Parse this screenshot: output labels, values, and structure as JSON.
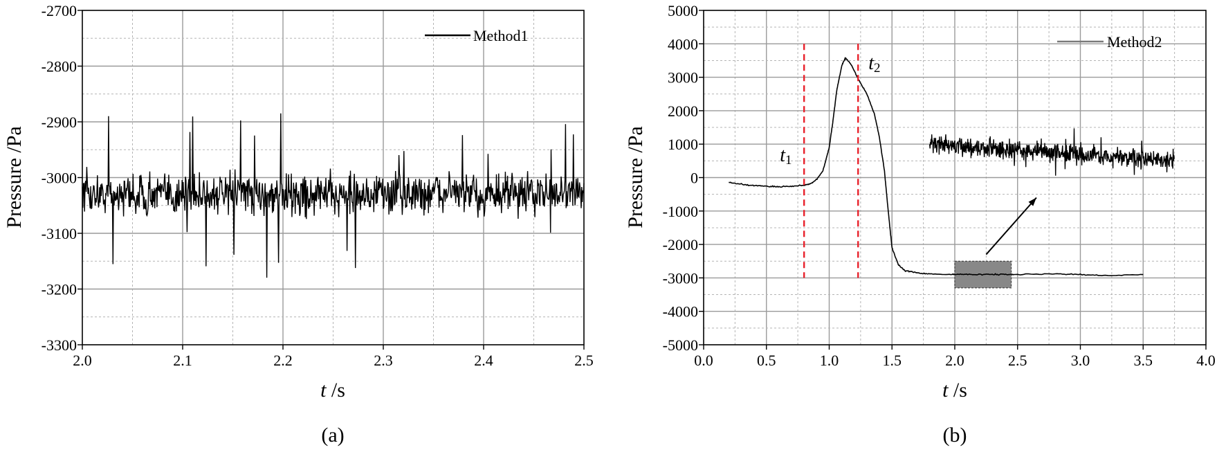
{
  "chart_data": [
    {
      "type": "line",
      "panel_label": "(a)",
      "xlabel_italic": "t",
      "xlabel_unit": " /s",
      "ylabel": "Pressure /Pa",
      "xlim": [
        2.0,
        2.5
      ],
      "ylim": [
        -3300,
        -2700
      ],
      "xticks": [
        "2.0",
        "2.1",
        "2.2",
        "2.3",
        "2.4",
        "2.5"
      ],
      "yticks": [
        "-2700",
        "-2800",
        "-2900",
        "-3000",
        "-3100",
        "-3200",
        "-3300"
      ],
      "grid": true,
      "legend_position": "top-right",
      "series": [
        {
          "name": "Method1",
          "color": "#000000",
          "description_values": {
            "mean": -3030,
            "noise_amplitude": 45,
            "min": -3200,
            "max": -2880,
            "x_start": 2.0,
            "x_end": 2.5
          }
        }
      ]
    },
    {
      "type": "line",
      "panel_label": "(b)",
      "xlabel_italic": "t",
      "xlabel_unit": " /s",
      "ylabel": "Pressure /Pa",
      "xlim": [
        0.0,
        4.0
      ],
      "ylim": [
        -5000,
        5000
      ],
      "xticks": [
        "0.0",
        "0.5",
        "1.0",
        "1.5",
        "2.0",
        "2.5",
        "3.0",
        "3.5",
        "4.0"
      ],
      "yticks": [
        "5000",
        "4000",
        "3000",
        "2000",
        "1000",
        "0",
        "-1000",
        "-2000",
        "-3000",
        "-4000",
        "-5000"
      ],
      "grid": true,
      "legend_position": "top-right",
      "series": [
        {
          "name": "Method2",
          "color": "#000000",
          "x": [
            0.2,
            0.3,
            0.4,
            0.5,
            0.6,
            0.7,
            0.8,
            0.85,
            0.9,
            0.95,
            1.0,
            1.03,
            1.06,
            1.1,
            1.13,
            1.18,
            1.23,
            1.3,
            1.36,
            1.4,
            1.44,
            1.47,
            1.5,
            1.55,
            1.6,
            1.7,
            1.8,
            2.0,
            2.2,
            2.5,
            2.8,
            3.0,
            3.2,
            3.5
          ],
          "y": [
            -150,
            -200,
            -240,
            -260,
            -270,
            -260,
            -230,
            -180,
            -60,
            200,
            900,
            1700,
            2600,
            3350,
            3580,
            3350,
            2950,
            2500,
            1900,
            1200,
            200,
            -1000,
            -2100,
            -2600,
            -2780,
            -2850,
            -2880,
            -2900,
            -2890,
            -2900,
            -2880,
            -2900,
            -2930,
            -2900
          ]
        }
      ],
      "inset": {
        "description": "magnified view of shaded region",
        "x_range": [
          2.0,
          2.45
        ],
        "y_range": [
          -3300,
          -2500
        ],
        "display_x": [
          1.8,
          3.75
        ],
        "display_center_y": 700,
        "display_noise_amplitude": 300,
        "box_color": "#888888"
      },
      "annotations": [
        {
          "label_italic": "t",
          "label_sub": "1",
          "x": 0.8,
          "line_color": "#e8202a"
        },
        {
          "label_italic": "t",
          "label_sub": "2",
          "x": 1.23,
          "line_color": "#e8202a"
        }
      ]
    }
  ]
}
